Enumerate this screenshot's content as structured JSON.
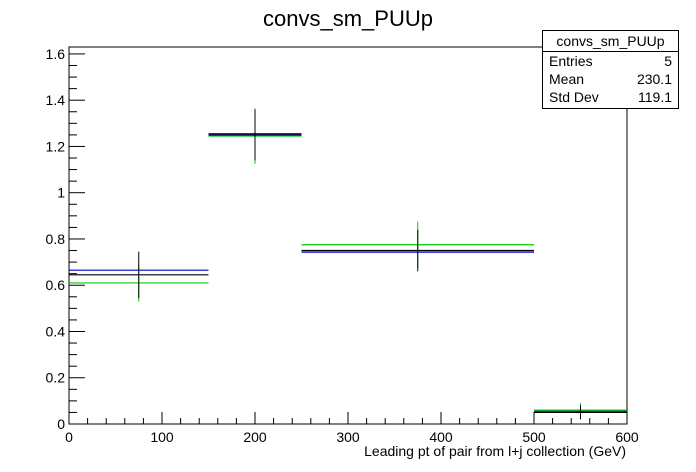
{
  "chart_data": {
    "type": "histogram",
    "title": "convs_sm_PUUp",
    "xlabel": "Leading pt of pair from l+j collection (GeV)",
    "ylabel": "",
    "xlim": [
      0,
      600
    ],
    "ylim": [
      0,
      1.63
    ],
    "xticks": [
      0,
      100,
      200,
      300,
      400,
      500,
      600
    ],
    "yticks": [
      0,
      0.2,
      0.4,
      0.6,
      0.8,
      1,
      1.2,
      1.4,
      1.6
    ],
    "ytick_labels": [
      "0",
      "0.2",
      "0.4",
      "0.6",
      "0.8",
      "1",
      "1.2",
      "1.4",
      "1.6"
    ],
    "grid": false,
    "bins": [
      [
        0,
        150
      ],
      [
        150,
        250
      ],
      [
        250,
        500
      ],
      [
        500,
        600
      ]
    ],
    "series": [
      {
        "color": "#000000",
        "values": [
          0.645,
          1.25,
          0.75,
          0.05
        ]
      },
      {
        "color": "#0000cc",
        "values": [
          0.665,
          1.255,
          0.743,
          0.055
        ]
      },
      {
        "color": "#00cc00",
        "values": [
          0.61,
          1.245,
          0.775,
          0.06
        ]
      }
    ],
    "error_bars": {
      "color": "#000000",
      "x": [
        75,
        200,
        375,
        550
      ],
      "y": [
        0.645,
        1.25,
        0.75,
        0.05
      ],
      "err": [
        0.1,
        0.11,
        0.09,
        0.03
      ]
    },
    "green_error_bars": {
      "color": "#00cc00",
      "x": [
        75,
        200,
        375,
        550
      ],
      "y": [
        0.61,
        1.245,
        0.775,
        0.06
      ],
      "err": [
        0.08,
        0.12,
        0.1,
        0.03
      ]
    }
  },
  "stats": {
    "name": "convs_sm_PUUp",
    "rows": [
      {
        "label": "Entries",
        "value": "5"
      },
      {
        "label": "Mean",
        "value": "230.1"
      },
      {
        "label": "Std Dev",
        "value": "119.1"
      }
    ]
  }
}
